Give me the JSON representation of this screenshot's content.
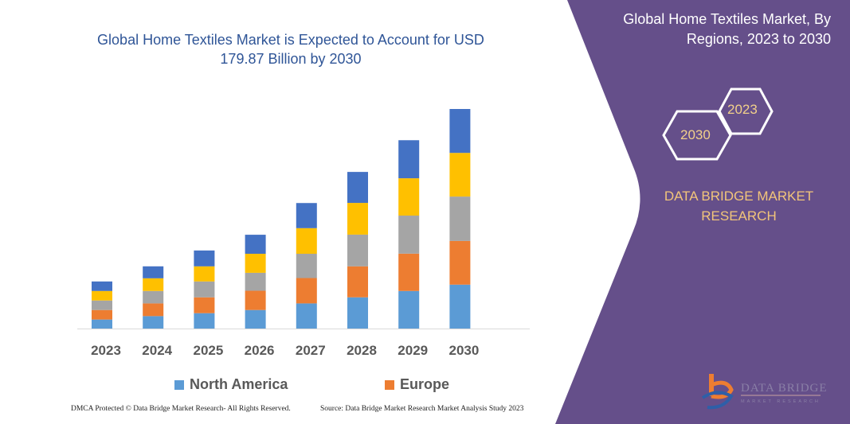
{
  "chart_data": {
    "type": "bar",
    "stacked": true,
    "title": "Global Home Textiles Market is Expected to Account for USD 179.87 Billion by 2030",
    "categories": [
      "2023",
      "2024",
      "2025",
      "2026",
      "2027",
      "2028",
      "2029",
      "2030"
    ],
    "series": [
      {
        "name": "North America",
        "color": "#5B9BD5",
        "values": [
          7.4,
          10.2,
          12.6,
          15.2,
          20.6,
          25.6,
          30.8,
          36.0
        ]
      },
      {
        "name": "Europe",
        "color": "#ED7D31",
        "values": [
          7.8,
          10.4,
          13.0,
          15.8,
          20.8,
          25.4,
          30.6,
          35.8
        ]
      },
      {
        "color": "#A5A5A5",
        "values": [
          7.8,
          10.2,
          13.0,
          14.7,
          19.9,
          26.0,
          31.2,
          36.4
        ]
      },
      {
        "color": "#FFC000",
        "values": [
          7.8,
          10.4,
          12.4,
          15.6,
          21.0,
          26.0,
          30.6,
          35.8
        ]
      },
      {
        "color": "#4472C4",
        "values": [
          7.8,
          9.8,
          13.0,
          15.6,
          20.6,
          25.4,
          31.2,
          36.0
        ]
      }
    ],
    "ylim": [
      0,
      180
    ],
    "y_axis_shown": false,
    "grid": false,
    "legend_position": "bottom"
  },
  "side_panel": {
    "title": "Global Home Textiles Market, By Regions, 2023 to 2030",
    "hex_years": [
      "2023",
      "2030"
    ],
    "brand": "DATA BRIDGE MARKET RESEARCH",
    "logo_text": "DATA BRIDGE MARKET RESEARCH",
    "color": "#654F8A"
  },
  "footer": {
    "copyright": "DMCA Protected © Data Bridge Market Research-  All Rights Reserved.",
    "source": "Source: Data Bridge Market Research  Market Analysis Study 2023"
  }
}
